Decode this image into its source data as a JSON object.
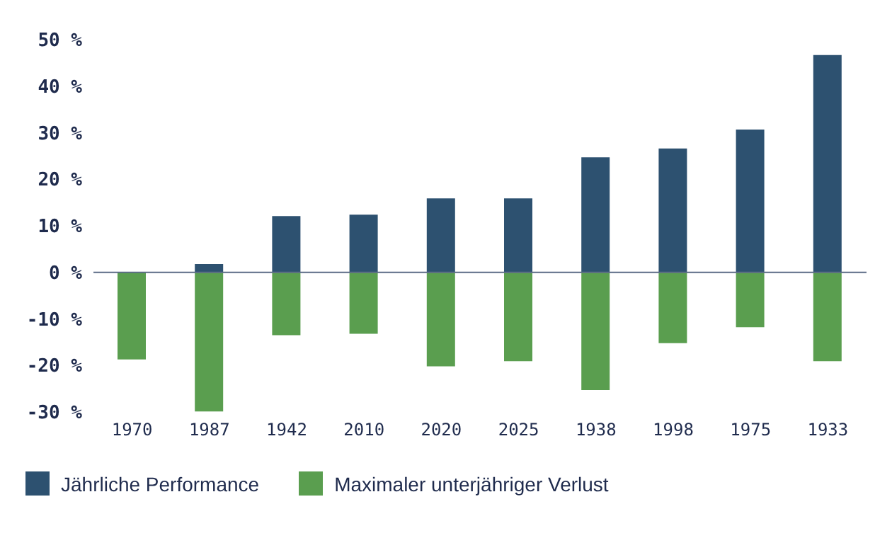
{
  "chart_data": {
    "type": "bar",
    "stacked": true,
    "categories": [
      "1970",
      "1987",
      "1942",
      "2010",
      "2020",
      "2025",
      "1938",
      "1998",
      "1975",
      "1933"
    ],
    "series": [
      {
        "name": "Jährliche Performance",
        "color": "#2d5170",
        "values": [
          0,
          1.8,
          12.1,
          12.4,
          15.9,
          15.9,
          24.7,
          26.6,
          30.7,
          46.7
        ]
      },
      {
        "name": "Maximaler unterjähriger Verlust",
        "color": "#5a9e4f",
        "values": [
          -18.7,
          -29.9,
          -13.5,
          -13.2,
          -20.2,
          -19.1,
          -25.3,
          -15.2,
          -11.8,
          -19.1
        ]
      }
    ],
    "ylim": [
      -30,
      50
    ],
    "yticks": [
      {
        "value": -30,
        "label": "-30 %"
      },
      {
        "value": -20,
        "label": "-20 %"
      },
      {
        "value": -10,
        "label": "-10 %"
      },
      {
        "value": 0,
        "label": "0 %"
      },
      {
        "value": 10,
        "label": "10 %"
      },
      {
        "value": 20,
        "label": "20 %"
      },
      {
        "value": 30,
        "label": "30 %"
      },
      {
        "value": 40,
        "label": "40 %"
      },
      {
        "value": 50,
        "label": "50 %"
      }
    ],
    "ref_lines": [
      {
        "axis": "y",
        "value": 0,
        "color": "#5b6b86"
      }
    ],
    "grid": false,
    "legend": "bottom left"
  }
}
